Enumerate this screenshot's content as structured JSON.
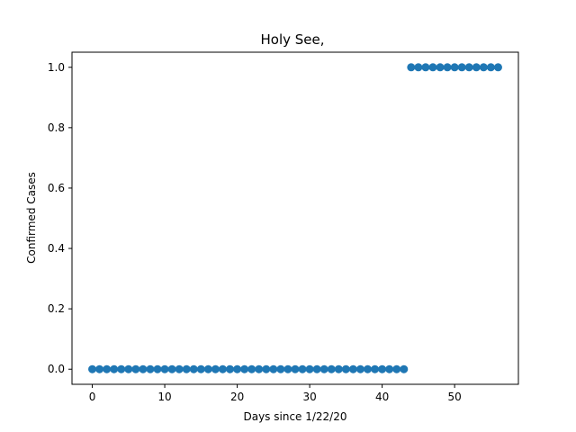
{
  "chart_data": {
    "type": "scatter",
    "title": "Holy See,",
    "xlabel": "Days since 1/22/20",
    "ylabel": "Confirmed Cases",
    "xlim": [
      -2.8,
      58.8
    ],
    "ylim": [
      -0.05,
      1.05
    ],
    "xticks": [
      0,
      10,
      20,
      30,
      40,
      50
    ],
    "yticks": [
      0.0,
      0.2,
      0.4,
      0.6,
      0.8,
      1.0
    ],
    "xtick_labels": [
      "0",
      "10",
      "20",
      "30",
      "40",
      "50"
    ],
    "ytick_labels": [
      "0.0",
      "0.2",
      "0.4",
      "0.6",
      "0.8",
      "1.0"
    ],
    "grid": false,
    "marker_color": "#1f77b4",
    "series": [
      {
        "x": [
          0,
          1,
          2,
          3,
          4,
          5,
          6,
          7,
          8,
          9,
          10,
          11,
          12,
          13,
          14,
          15,
          16,
          17,
          18,
          19,
          20,
          21,
          22,
          23,
          24,
          25,
          26,
          27,
          28,
          29,
          30,
          31,
          32,
          33,
          34,
          35,
          36,
          37,
          38,
          39,
          40,
          41,
          42,
          43,
          44,
          45,
          46,
          47,
          48,
          49,
          50,
          51,
          52,
          53,
          54,
          55,
          56
        ],
        "y": [
          0,
          0,
          0,
          0,
          0,
          0,
          0,
          0,
          0,
          0,
          0,
          0,
          0,
          0,
          0,
          0,
          0,
          0,
          0,
          0,
          0,
          0,
          0,
          0,
          0,
          0,
          0,
          0,
          0,
          0,
          0,
          0,
          0,
          0,
          0,
          0,
          0,
          0,
          0,
          0,
          0,
          0,
          0,
          0,
          1,
          1,
          1,
          1,
          1,
          1,
          1,
          1,
          1,
          1,
          1,
          1,
          1
        ]
      }
    ]
  }
}
